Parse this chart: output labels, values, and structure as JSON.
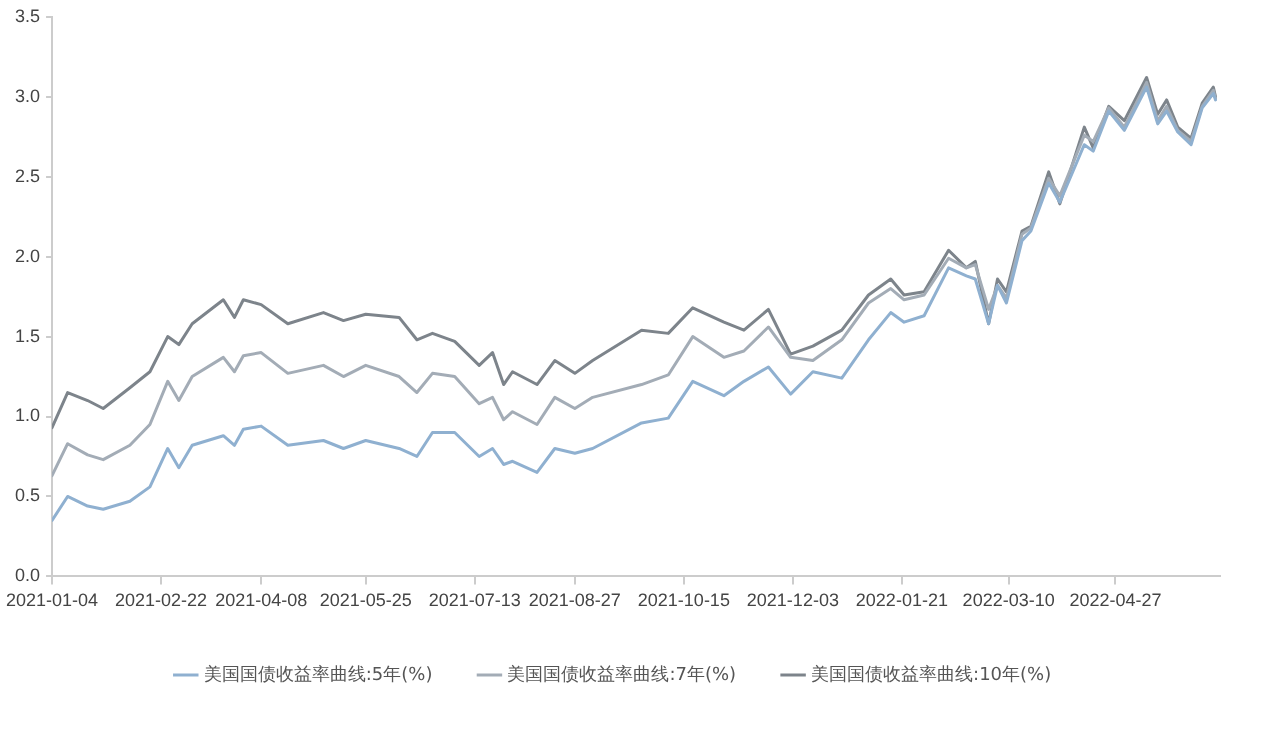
{
  "chart_data": {
    "type": "line",
    "x": [
      "2021-01-04",
      "2021-01-11",
      "2021-01-20",
      "2021-01-27",
      "2021-02-08",
      "2021-02-17",
      "2021-02-25",
      "2021-03-02",
      "2021-03-08",
      "2021-03-22",
      "2021-03-27",
      "2021-03-31",
      "2021-04-08",
      "2021-04-20",
      "2021-05-06",
      "2021-05-15",
      "2021-05-25",
      "2021-06-09",
      "2021-06-17",
      "2021-06-24",
      "2021-07-04",
      "2021-07-15",
      "2021-07-21",
      "2021-07-26",
      "2021-07-30",
      "2021-08-10",
      "2021-08-18",
      "2021-08-27",
      "2021-09-04",
      "2021-09-26",
      "2021-10-08",
      "2021-10-19",
      "2021-11-02",
      "2021-11-11",
      "2021-11-22",
      "2021-12-02",
      "2021-12-12",
      "2021-12-25",
      "2022-01-06",
      "2022-01-16",
      "2022-01-22",
      "2022-01-31",
      "2022-02-11",
      "2022-02-19",
      "2022-02-23",
      "2022-03-01",
      "2022-03-05",
      "2022-03-09",
      "2022-03-16",
      "2022-03-20",
      "2022-03-28",
      "2022-04-02",
      "2022-04-13",
      "2022-04-17",
      "2022-04-24",
      "2022-05-01",
      "2022-05-11",
      "2022-05-16",
      "2022-05-20",
      "2022-05-25",
      "2022-05-31",
      "2022-06-05",
      "2022-06-10",
      "2022-06-11"
    ],
    "series": [
      {
        "name": "美国国债收益率曲线:5年(%)",
        "color": "#8fb0d0",
        "values": [
          0.35,
          0.5,
          0.44,
          0.42,
          0.47,
          0.56,
          0.8,
          0.68,
          0.82,
          0.88,
          0.82,
          0.92,
          0.94,
          0.82,
          0.85,
          0.8,
          0.85,
          0.8,
          0.75,
          0.9,
          0.9,
          0.75,
          0.8,
          0.7,
          0.72,
          0.65,
          0.8,
          0.77,
          0.8,
          0.96,
          0.99,
          1.22,
          1.13,
          1.22,
          1.31,
          1.14,
          1.28,
          1.24,
          1.48,
          1.65,
          1.59,
          1.63,
          1.93,
          1.88,
          1.86,
          1.58,
          1.82,
          1.71,
          2.1,
          2.16,
          2.46,
          2.34,
          2.7,
          2.66,
          2.91,
          2.79,
          3.06,
          2.83,
          2.91,
          2.78,
          2.7,
          2.93,
          3.02,
          2.98
        ]
      },
      {
        "name": "美国国债收益率曲线:7年(%)",
        "color": "#a3acb6",
        "values": [
          0.63,
          0.83,
          0.76,
          0.73,
          0.82,
          0.95,
          1.22,
          1.1,
          1.25,
          1.37,
          1.28,
          1.38,
          1.4,
          1.27,
          1.32,
          1.25,
          1.32,
          1.25,
          1.15,
          1.27,
          1.25,
          1.08,
          1.12,
          0.98,
          1.03,
          0.95,
          1.12,
          1.05,
          1.12,
          1.2,
          1.26,
          1.5,
          1.37,
          1.41,
          1.56,
          1.37,
          1.35,
          1.48,
          1.71,
          1.8,
          1.73,
          1.76,
          1.99,
          1.93,
          1.95,
          1.67,
          1.82,
          1.74,
          2.14,
          2.18,
          2.49,
          2.38,
          2.76,
          2.72,
          2.93,
          2.81,
          3.09,
          2.85,
          2.94,
          2.79,
          2.72,
          2.94,
          3.04,
          2.99
        ]
      },
      {
        "name": "美国国债收益率曲线:10年(%)",
        "color": "#7d848b",
        "values": [
          0.93,
          1.15,
          1.1,
          1.05,
          1.18,
          1.28,
          1.5,
          1.45,
          1.58,
          1.73,
          1.62,
          1.73,
          1.7,
          1.58,
          1.65,
          1.6,
          1.64,
          1.62,
          1.48,
          1.52,
          1.47,
          1.32,
          1.4,
          1.2,
          1.28,
          1.2,
          1.35,
          1.27,
          1.35,
          1.54,
          1.52,
          1.68,
          1.59,
          1.54,
          1.67,
          1.39,
          1.44,
          1.54,
          1.76,
          1.86,
          1.76,
          1.78,
          2.04,
          1.93,
          1.97,
          1.58,
          1.86,
          1.78,
          2.16,
          2.19,
          2.53,
          2.33,
          2.81,
          2.68,
          2.94,
          2.85,
          3.12,
          2.89,
          2.98,
          2.81,
          2.74,
          2.96,
          3.06,
          3.0
        ]
      }
    ],
    "xlim": [
      "2021-01-04",
      "2022-06-13"
    ],
    "xticks": [
      "2021-01-04",
      "2021-02-22",
      "2021-04-08",
      "2021-05-25",
      "2021-07-13",
      "2021-08-27",
      "2021-10-15",
      "2021-12-03",
      "2022-01-21",
      "2022-03-10",
      "2022-04-27"
    ],
    "ylim": [
      0,
      3.5
    ],
    "yticks": [
      {
        "value": 0,
        "label": "0.0"
      },
      0.5,
      {
        "value": 1,
        "label": "1.0"
      },
      1.5,
      {
        "value": 2,
        "label": "2.0"
      },
      2.5,
      {
        "value": 3,
        "label": "3.0"
      },
      3.5
    ],
    "grid": false,
    "legend": "bottom",
    "marker": "none",
    "line_style": "solid"
  }
}
